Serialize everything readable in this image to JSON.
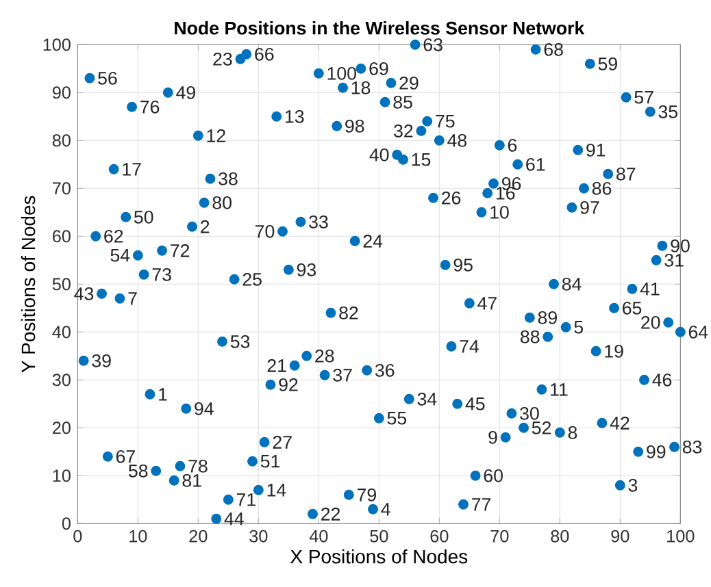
{
  "chart_data": {
    "type": "scatter",
    "title": "Node Positions in the Wireless Sensor Network",
    "xlabel": "X Positions of Nodes",
    "ylabel": "Y Positions of Nodes",
    "x": [
      12,
      19,
      90,
      49,
      81,
      70,
      7,
      80,
      71,
      67,
      77,
      20,
      33,
      30,
      54,
      68,
      6,
      44,
      86,
      98,
      36,
      39,
      27,
      46,
      26,
      59,
      31,
      38,
      52,
      72,
      96,
      57,
      37,
      55,
      95,
      48,
      41,
      22,
      1,
      53,
      92,
      87,
      4,
      23,
      63,
      94,
      65,
      60,
      15,
      8,
      29,
      74,
      24,
      10,
      50,
      2,
      91,
      13,
      85,
      66,
      73,
      3,
      56,
      100,
      89,
      28,
      5,
      76,
      47,
      34,
      25,
      14,
      11,
      62,
      58,
      9,
      64,
      17,
      45,
      21,
      16,
      42,
      99,
      79,
      51,
      84,
      88,
      78,
      75,
      97,
      83,
      32,
      35,
      18,
      61,
      69,
      82,
      43,
      93,
      40
    ],
    "values": [
      27,
      62,
      8,
      3,
      41,
      79,
      47,
      19,
      18,
      65,
      28,
      81,
      85,
      7,
      76,
      69,
      74,
      91,
      36,
      42,
      33,
      2,
      97,
      59,
      51,
      68,
      17,
      35,
      92,
      23,
      55,
      82,
      63,
      26,
      86,
      32,
      31,
      72,
      34,
      77,
      49,
      21,
      48,
      1,
      25,
      30,
      46,
      80,
      90,
      64,
      13,
      20,
      38,
      56,
      22,
      93,
      89,
      11,
      96,
      10,
      75,
      60,
      100,
      40,
      45,
      98,
      14,
      99,
      95,
      61,
      5,
      57,
      52,
      37,
      84,
      87,
      4,
      12,
      6,
      67,
      9,
      44,
      16,
      50,
      88,
      70,
      73,
      39,
      43,
      58,
      78,
      29,
      53,
      24,
      54,
      71,
      66,
      83,
      15,
      94
    ],
    "color": "#0072bd",
    "marker": "circle",
    "grid": true,
    "xlim": [
      0,
      100
    ],
    "ylim": [
      0,
      100
    ],
    "xticks": [
      0,
      10,
      20,
      30,
      40,
      50,
      60,
      70,
      80,
      90,
      100
    ],
    "yticks": [
      0,
      10,
      20,
      30,
      40,
      50,
      60,
      70,
      80,
      90,
      100
    ],
    "annotations": [
      {
        "text": "1",
        "x": 12,
        "y": 27
      },
      {
        "text": "2",
        "x": 19,
        "y": 62
      },
      {
        "text": "3",
        "x": 90,
        "y": 8
      },
      {
        "text": "4",
        "x": 49,
        "y": 3
      },
      {
        "text": "5",
        "x": 81,
        "y": 41
      },
      {
        "text": "6",
        "x": 70,
        "y": 79
      },
      {
        "text": "7",
        "x": 7,
        "y": 47
      },
      {
        "text": "8",
        "x": 80,
        "y": 19
      },
      {
        "text": "9",
        "x": 71,
        "y": 18
      },
      {
        "text": "10",
        "x": 67,
        "y": 65
      },
      {
        "text": "11",
        "x": 77,
        "y": 28
      },
      {
        "text": "12",
        "x": 20,
        "y": 81
      },
      {
        "text": "13",
        "x": 33,
        "y": 85
      },
      {
        "text": "14",
        "x": 30,
        "y": 7
      },
      {
        "text": "15",
        "x": 54,
        "y": 76
      },
      {
        "text": "16",
        "x": 68,
        "y": 69
      },
      {
        "text": "17",
        "x": 6,
        "y": 74
      },
      {
        "text": "18",
        "x": 44,
        "y": 91
      },
      {
        "text": "19",
        "x": 86,
        "y": 36
      },
      {
        "text": "20",
        "x": 98,
        "y": 42
      },
      {
        "text": "21",
        "x": 36,
        "y": 33
      },
      {
        "text": "22",
        "x": 39,
        "y": 2
      },
      {
        "text": "23",
        "x": 27,
        "y": 97
      },
      {
        "text": "24",
        "x": 46,
        "y": 59
      },
      {
        "text": "25",
        "x": 26,
        "y": 51
      },
      {
        "text": "26",
        "x": 59,
        "y": 68
      },
      {
        "text": "27",
        "x": 31,
        "y": 17
      },
      {
        "text": "28",
        "x": 38,
        "y": 35
      },
      {
        "text": "29",
        "x": 52,
        "y": 92
      },
      {
        "text": "30",
        "x": 72,
        "y": 23
      },
      {
        "text": "31",
        "x": 96,
        "y": 55
      },
      {
        "text": "32",
        "x": 57,
        "y": 82
      },
      {
        "text": "33",
        "x": 37,
        "y": 63
      },
      {
        "text": "34",
        "x": 55,
        "y": 26
      },
      {
        "text": "35",
        "x": 95,
        "y": 86
      },
      {
        "text": "36",
        "x": 48,
        "y": 32
      },
      {
        "text": "37",
        "x": 41,
        "y": 31
      },
      {
        "text": "38",
        "x": 22,
        "y": 72
      },
      {
        "text": "39",
        "x": 1,
        "y": 34
      },
      {
        "text": "40",
        "x": 53,
        "y": 77
      },
      {
        "text": "41",
        "x": 92,
        "y": 49
      },
      {
        "text": "42",
        "x": 87,
        "y": 21
      },
      {
        "text": "43",
        "x": 4,
        "y": 48
      },
      {
        "text": "44",
        "x": 23,
        "y": 1
      },
      {
        "text": "45",
        "x": 63,
        "y": 25
      },
      {
        "text": "46",
        "x": 94,
        "y": 30
      },
      {
        "text": "47",
        "x": 65,
        "y": 46
      },
      {
        "text": "48",
        "x": 60,
        "y": 80
      },
      {
        "text": "49",
        "x": 15,
        "y": 90
      },
      {
        "text": "50",
        "x": 8,
        "y": 64
      },
      {
        "text": "51",
        "x": 29,
        "y": 13
      },
      {
        "text": "52",
        "x": 74,
        "y": 20
      },
      {
        "text": "53",
        "x": 24,
        "y": 38
      },
      {
        "text": "54",
        "x": 10,
        "y": 56
      },
      {
        "text": "55",
        "x": 50,
        "y": 22
      },
      {
        "text": "56",
        "x": 2,
        "y": 93
      },
      {
        "text": "57",
        "x": 91,
        "y": 89
      },
      {
        "text": "58",
        "x": 13,
        "y": 11
      },
      {
        "text": "59",
        "x": 85,
        "y": 96
      },
      {
        "text": "60",
        "x": 66,
        "y": 10
      },
      {
        "text": "61",
        "x": 73,
        "y": 75
      },
      {
        "text": "62",
        "x": 3,
        "y": 60
      },
      {
        "text": "63",
        "x": 56,
        "y": 100
      },
      {
        "text": "64",
        "x": 100,
        "y": 40
      },
      {
        "text": "65",
        "x": 89,
        "y": 45
      },
      {
        "text": "66",
        "x": 28,
        "y": 98
      },
      {
        "text": "67",
        "x": 5,
        "y": 14
      },
      {
        "text": "68",
        "x": 76,
        "y": 99
      },
      {
        "text": "69",
        "x": 47,
        "y": 95
      },
      {
        "text": "70",
        "x": 34,
        "y": 61
      },
      {
        "text": "71",
        "x": 25,
        "y": 5
      },
      {
        "text": "72",
        "x": 14,
        "y": 57
      },
      {
        "text": "73",
        "x": 11,
        "y": 52
      },
      {
        "text": "74",
        "x": 62,
        "y": 37
      },
      {
        "text": "75",
        "x": 58,
        "y": 84
      },
      {
        "text": "76",
        "x": 9,
        "y": 87
      },
      {
        "text": "77",
        "x": 64,
        "y": 4
      },
      {
        "text": "78",
        "x": 17,
        "y": 12
      },
      {
        "text": "79",
        "x": 45,
        "y": 6
      },
      {
        "text": "80",
        "x": 21,
        "y": 67
      },
      {
        "text": "81",
        "x": 16,
        "y": 9
      },
      {
        "text": "82",
        "x": 42,
        "y": 44
      },
      {
        "text": "83",
        "x": 99,
        "y": 16
      },
      {
        "text": "84",
        "x": 79,
        "y": 50
      },
      {
        "text": "85",
        "x": 51,
        "y": 88
      },
      {
        "text": "86",
        "x": 84,
        "y": 70
      },
      {
        "text": "87",
        "x": 88,
        "y": 73
      },
      {
        "text": "88",
        "x": 78,
        "y": 39
      },
      {
        "text": "89",
        "x": 75,
        "y": 43
      },
      {
        "text": "90",
        "x": 97,
        "y": 58
      },
      {
        "text": "91",
        "x": 83,
        "y": 78
      },
      {
        "text": "92",
        "x": 32,
        "y": 29
      },
      {
        "text": "93",
        "x": 35,
        "y": 53
      },
      {
        "text": "94",
        "x": 18,
        "y": 24
      },
      {
        "text": "95",
        "x": 61,
        "y": 54
      },
      {
        "text": "96",
        "x": 69,
        "y": 71
      },
      {
        "text": "97",
        "x": 82,
        "y": 66
      },
      {
        "text": "98",
        "x": 43,
        "y": 83
      },
      {
        "text": "99",
        "x": 93,
        "y": 15
      },
      {
        "text": "100",
        "x": 40,
        "y": 94
      }
    ]
  }
}
